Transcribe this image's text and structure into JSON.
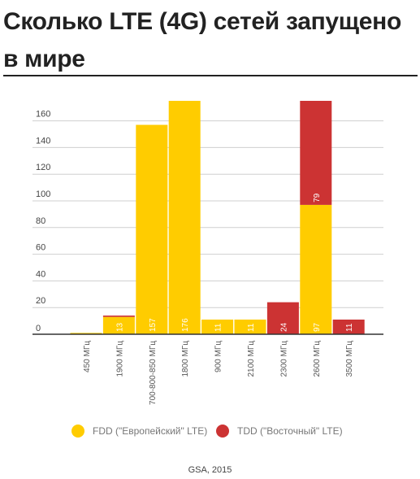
{
  "header": {
    "title": "Сколько LTE (4G) сетей запущено в мире"
  },
  "colors": {
    "fdd": "#ffcc00",
    "tdd": "#cc3333",
    "grid": "#cfcfcf",
    "axis": "#333333"
  },
  "chart_data": {
    "type": "bar",
    "stacked": true,
    "title": "Сколько LTE (4G) сетей запущено в мире",
    "xlabel": "",
    "ylabel": "",
    "ylim": [
      0,
      175
    ],
    "yticks": [
      0,
      20,
      40,
      60,
      80,
      100,
      120,
      140,
      160
    ],
    "grid": true,
    "legend": "bottom",
    "categories": [
      "450 МГц",
      "1900 МГц",
      "700-800-850 МГц",
      "1800 МГц",
      "900 МГц",
      "2100 МГц",
      "2300 МГц",
      "2600 МГц",
      "3500 МГц"
    ],
    "series": [
      {
        "name": "FDD (\"Европейский\" LTE)",
        "color": "#ffcc00",
        "values": [
          1,
          13,
          157,
          176,
          11,
          11,
          0,
          97,
          0
        ],
        "labels": [
          "",
          "13",
          "157",
          "176",
          "11",
          "11",
          "",
          "97",
          ""
        ]
      },
      {
        "name": "TDD (\"Восточный\" LTE)",
        "color": "#cc3333",
        "values": [
          0,
          1,
          0,
          0,
          0,
          0,
          24,
          79,
          11
        ],
        "labels": [
          "",
          "",
          "",
          "",
          "",
          "",
          "24",
          "79",
          "11"
        ]
      }
    ]
  },
  "legend": {
    "fdd_label": "FDD (\"Европейский\" LTE)",
    "tdd_label": "TDD (\"Восточный\" LTE)"
  },
  "footer": {
    "source": "GSA, 2015"
  }
}
